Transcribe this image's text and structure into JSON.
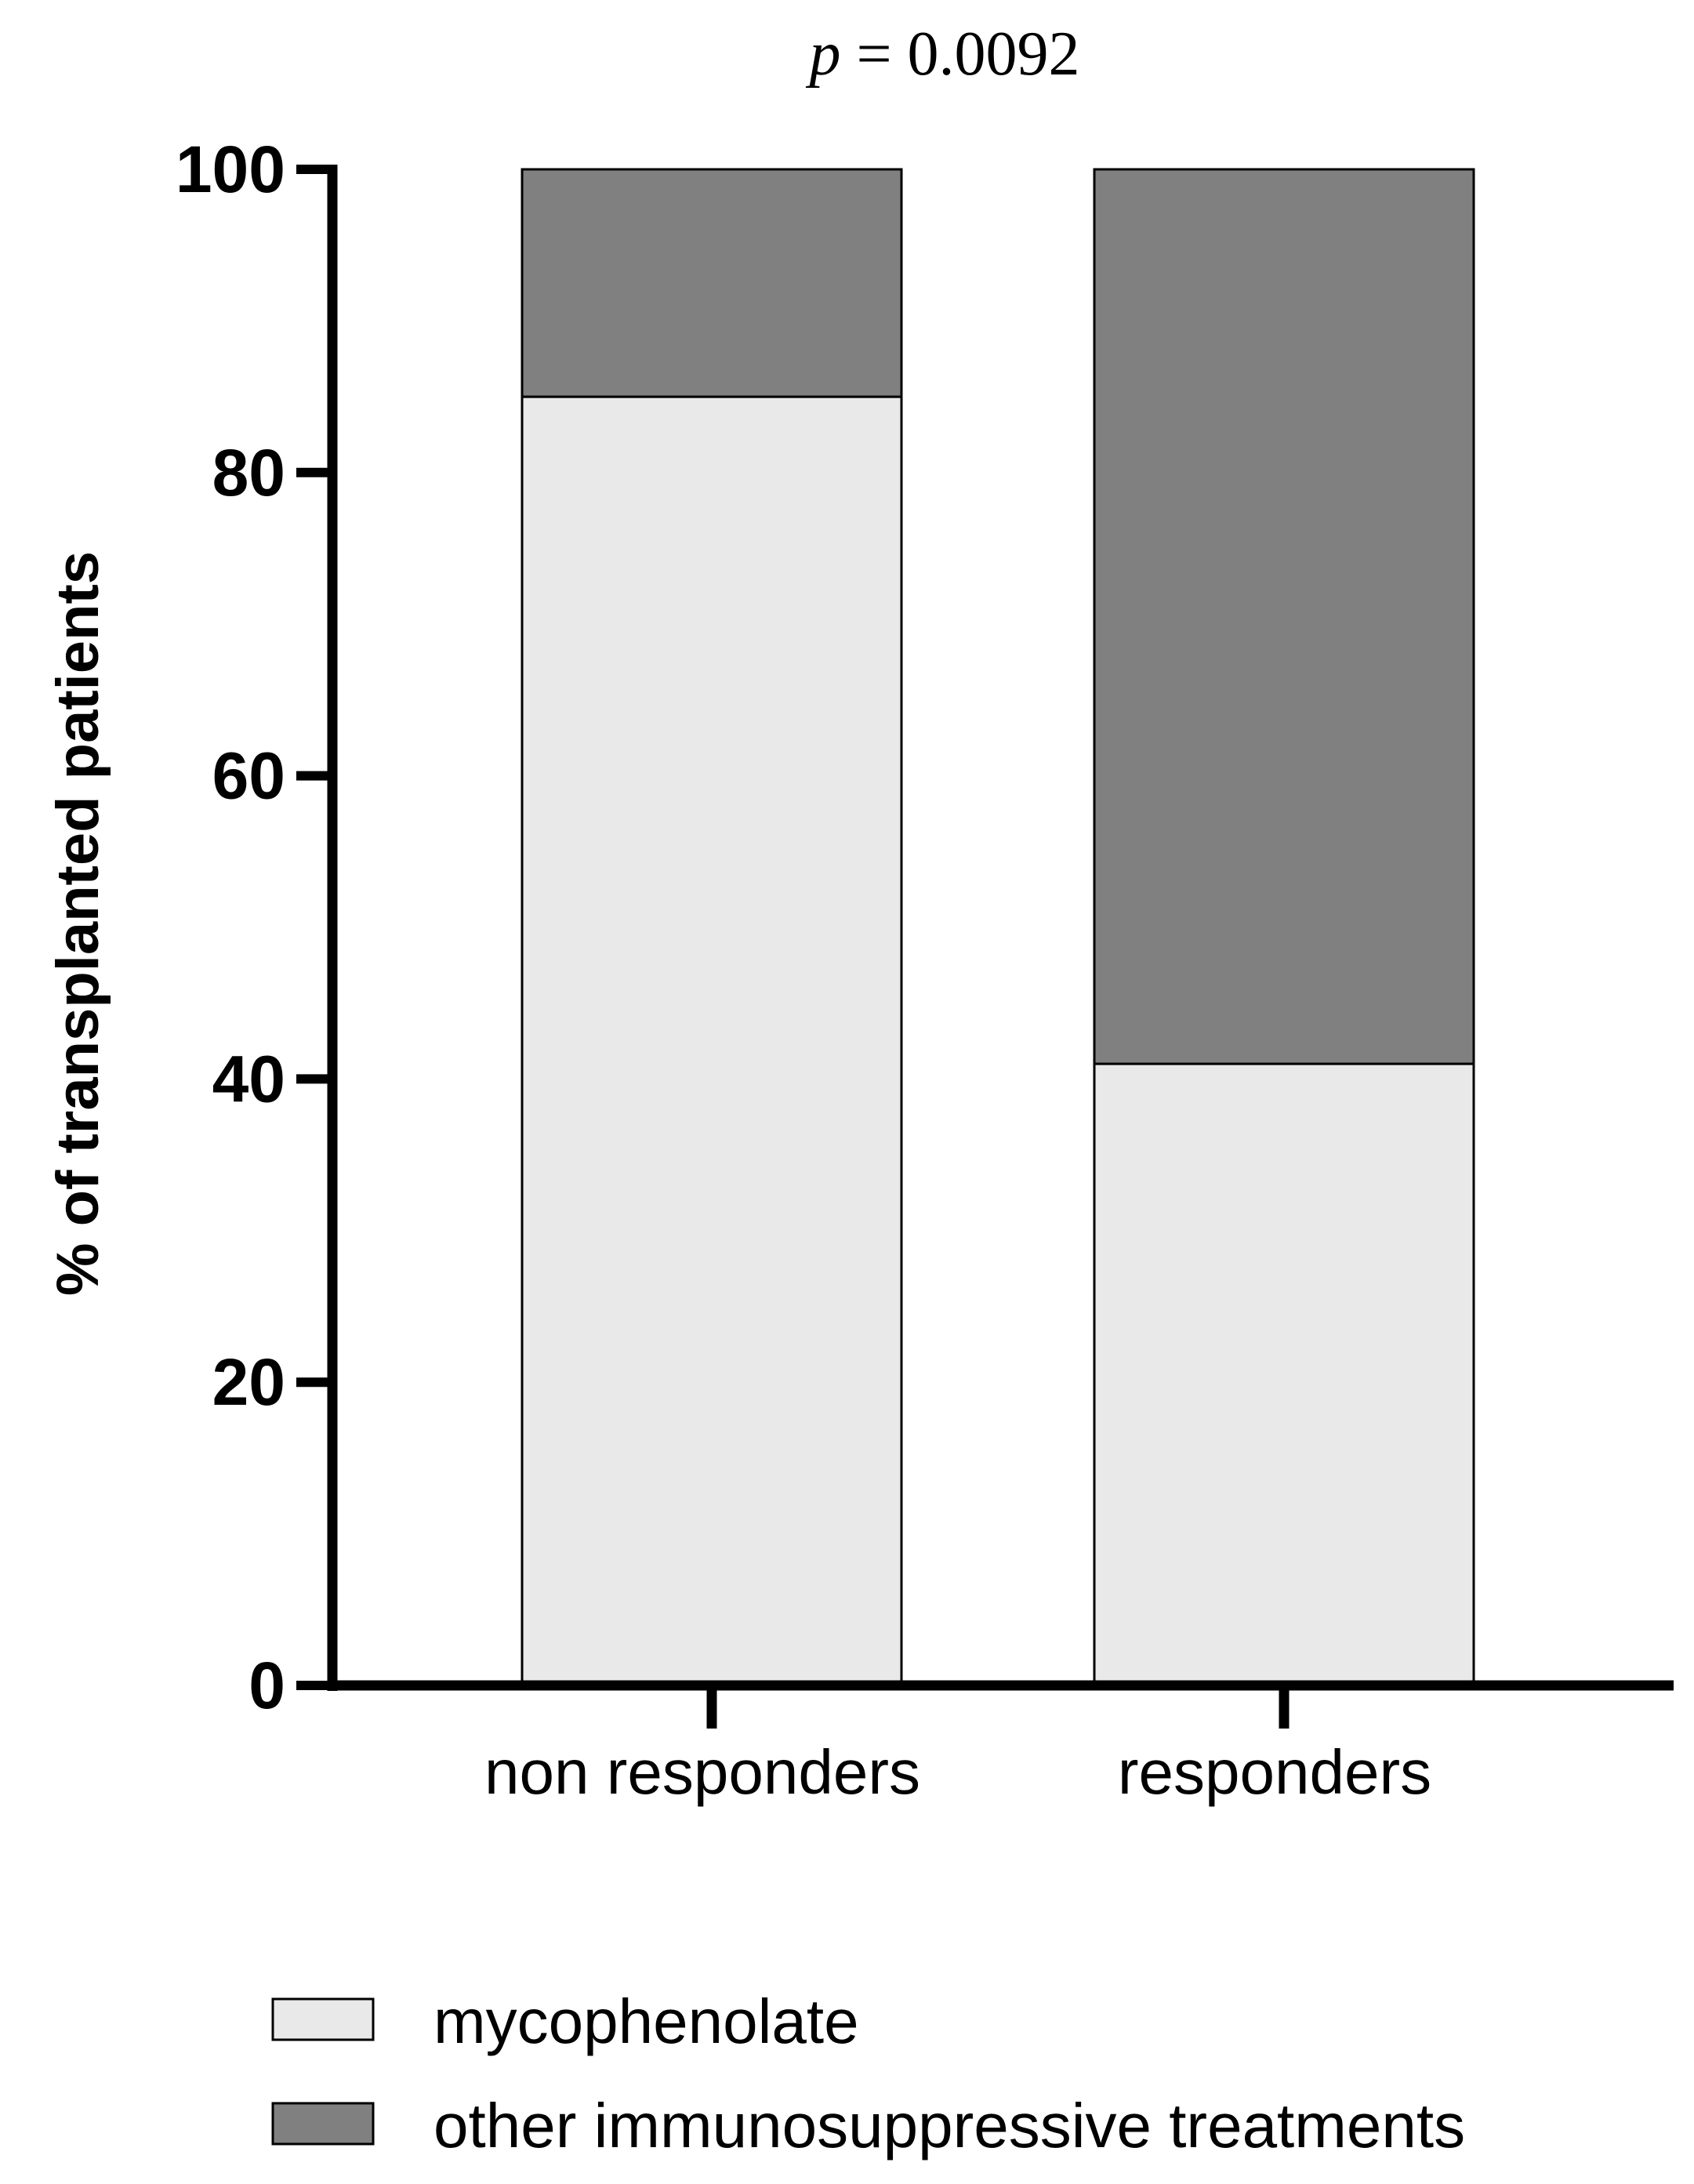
{
  "chart_data": {
    "type": "bar",
    "stacked": true,
    "title": "p = 0.0092",
    "title_parts": {
      "italic": "p",
      "rest": " = 0.0092"
    },
    "xlabel": "",
    "ylabel": "% of transplanted patients",
    "ylim": [
      0,
      100
    ],
    "yticks": [
      "0",
      "20",
      "40",
      "60",
      "80",
      "100"
    ],
    "categories": [
      "non responders",
      "responders"
    ],
    "series": [
      {
        "name": "mycophenolate",
        "values": [
          85,
          41
        ],
        "color": "#e9e9e9"
      },
      {
        "name": "other immunosuppressive treatments",
        "values": [
          15,
          59
        ],
        "color": "#808080"
      }
    ],
    "grid": false,
    "legend_position": "bottom-left"
  }
}
